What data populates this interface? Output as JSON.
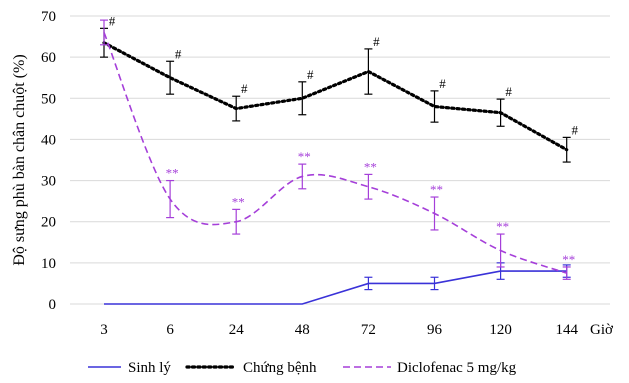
{
  "chart_data": {
    "type": "line",
    "title": "",
    "ylabel": "Độ sưng phù bàn chân chuột (%)",
    "xlabel": "Giờ",
    "categories": [
      "3",
      "6",
      "24",
      "48",
      "72",
      "96",
      "120",
      "144"
    ],
    "ylim": [
      0,
      70
    ],
    "yticks": [
      0,
      10,
      20,
      30,
      40,
      50,
      60,
      70
    ],
    "grid": "horizontal",
    "legend_position": "bottom",
    "series": [
      {
        "name": "Sinh lý",
        "color": "#3a32d8",
        "style": "solid",
        "values": [
          0,
          0,
          0,
          0,
          5,
          5,
          8,
          8
        ],
        "errors": [
          0,
          0,
          0,
          0,
          1.5,
          1.5,
          2,
          1.5
        ],
        "annotations": [
          "",
          "",
          "",
          "",
          "",
          "",
          "",
          ""
        ]
      },
      {
        "name": "Chứng bệnh",
        "color": "#000000",
        "style": "dotted",
        "values": [
          63.5,
          55,
          47.5,
          50,
          56.5,
          48,
          46.5,
          37.5
        ],
        "errors": [
          3.5,
          4,
          3,
          4,
          5.5,
          3.8,
          3.3,
          3
        ],
        "annotations": [
          "#",
          "#",
          "#",
          "#",
          "#",
          "#",
          "#",
          "#"
        ]
      },
      {
        "name": "Diclofenac 5 mg/kg",
        "color": "#a53fd9",
        "style": "dashed",
        "values": [
          66,
          25.5,
          20,
          31,
          28.5,
          22,
          13,
          7.5
        ],
        "errors": [
          3,
          4.5,
          3,
          3,
          3,
          4,
          4,
          1.5
        ],
        "annotations": [
          "",
          "**",
          "**",
          "**",
          "**",
          "**",
          "**",
          "**"
        ]
      }
    ]
  }
}
